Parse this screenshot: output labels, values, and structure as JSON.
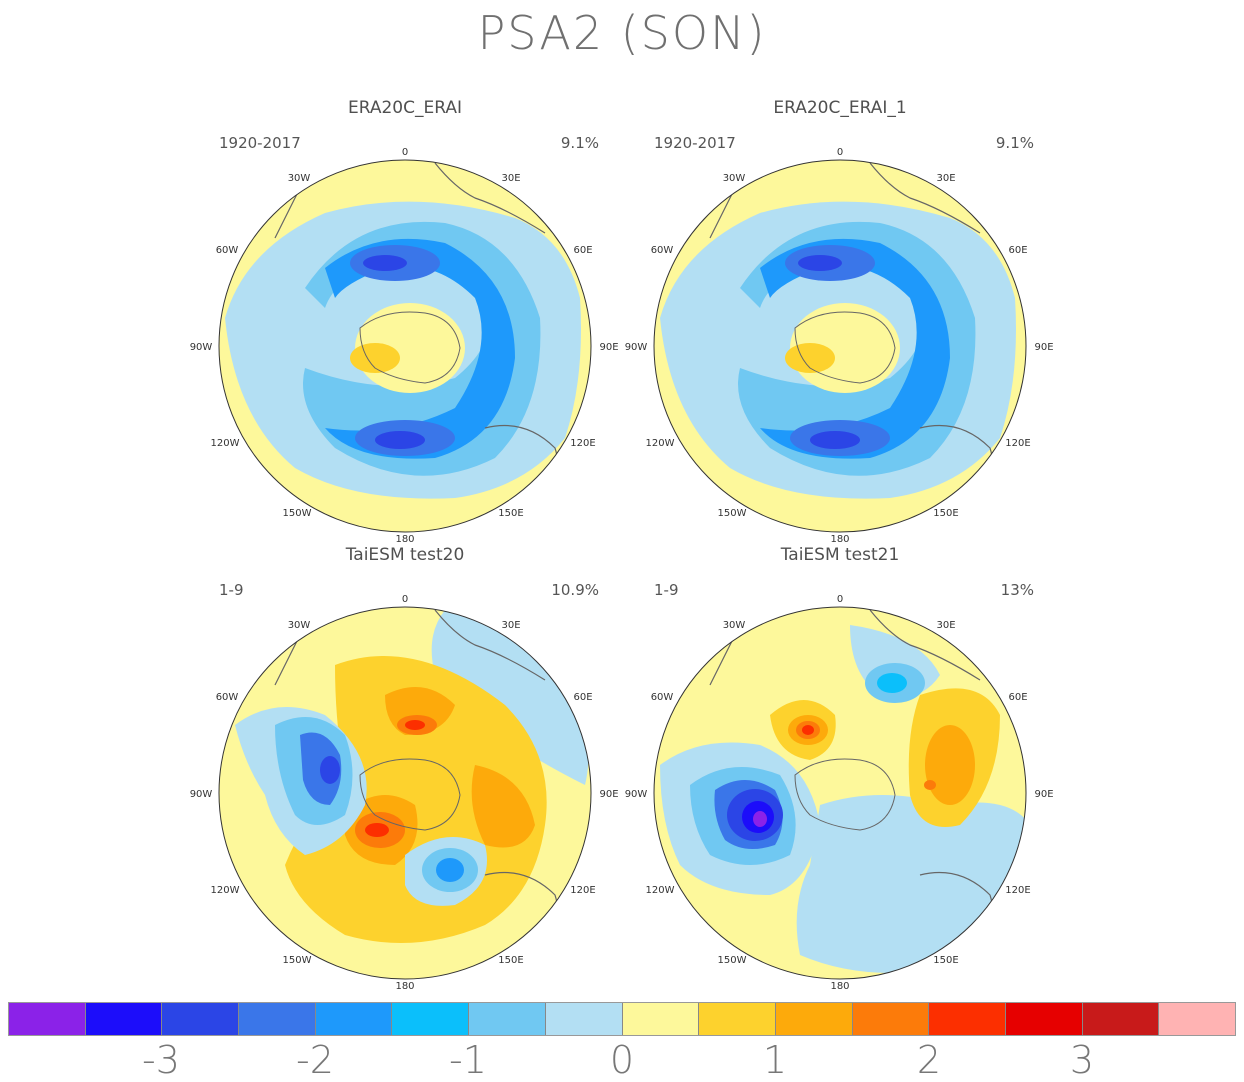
{
  "title": "PSA2 (SON)",
  "panels": [
    {
      "title": "ERA20C_ERAI",
      "period": "1920-2017",
      "variance": "9.1%"
    },
    {
      "title": "ERA20C_ERAI_1",
      "period": "1920-2017",
      "variance": "9.1%"
    },
    {
      "title": "TaiESM test20",
      "period": "1-9",
      "variance": "10.9%"
    },
    {
      "title": "TaiESM test21",
      "period": "1-9",
      "variance": "13%"
    }
  ],
  "lon_labels": [
    "0",
    "30E",
    "60E",
    "90E",
    "120E",
    "150E",
    "180",
    "150W",
    "120W",
    "90W",
    "60W",
    "30W"
  ],
  "colorbar": {
    "colors": [
      "#8b22e8",
      "#1c0dfa",
      "#2b45e6",
      "#3a76e9",
      "#1e99fb",
      "#0bbffb",
      "#70c8f2",
      "#b3dff3",
      "#fdf89b",
      "#fdd22d",
      "#fdaa0b",
      "#fc7b0a",
      "#fc2f00",
      "#e60000",
      "#c81a1a",
      "#ffb3b3"
    ],
    "tick_labels": [
      "-3",
      "-2",
      "-1",
      "0",
      "1",
      "2",
      "3"
    ]
  }
}
